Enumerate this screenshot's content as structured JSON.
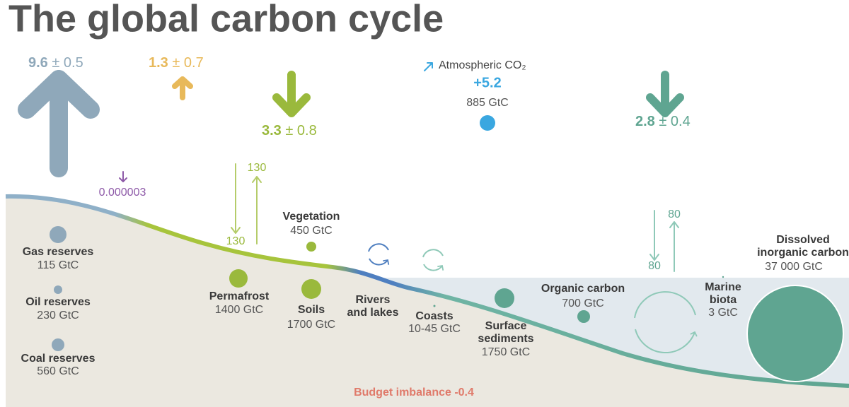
{
  "title": "The global carbon cycle",
  "fluxes": [
    {
      "value": "9.6",
      "uncertainty": "± 0.5"
    },
    {
      "value": "1.3",
      "uncertainty": "± 0.7"
    },
    {
      "value": "3.3",
      "uncertainty": "± 0.8"
    },
    {
      "value": "2.8",
      "uncertainty": "± 0.4"
    }
  ],
  "volcanic": "0.000003",
  "atmosphere": {
    "label": "Atmospheric CO₂",
    "change": "+5.2",
    "stock": "885 GtC"
  },
  "land_exchange": {
    "down": "130",
    "up": "130"
  },
  "ocean_exchange": {
    "down": "80",
    "up": "80"
  },
  "reservoirs": [
    {
      "name": [
        "Gas reserves"
      ],
      "stock": "115 GtC"
    },
    {
      "name": [
        "Oil reserves"
      ],
      "stock": "230 GtC"
    },
    {
      "name": [
        "Coal reserves"
      ],
      "stock": "560 GtC"
    },
    {
      "name": [
        "Vegetation"
      ],
      "stock": "450 GtC"
    },
    {
      "name": [
        "Permafrost"
      ],
      "stock": "1400 GtC"
    },
    {
      "name": [
        "Soils"
      ],
      "stock": "1700 GtC"
    },
    {
      "name": [
        "Rivers",
        "and lakes"
      ]
    },
    {
      "name": [
        "Coasts"
      ],
      "stock": "10-45 GtC"
    },
    {
      "name": [
        "Surface",
        "sediments"
      ],
      "stock": "1750 GtC"
    },
    {
      "name": [
        "Organic carbon"
      ],
      "stock": "700 GtC"
    },
    {
      "name": [
        "Marine",
        "biota"
      ],
      "stock": "3 GtC"
    },
    {
      "name": [
        "Dissolved",
        "inorganic carbon"
      ],
      "stock": "37 000 GtC"
    }
  ],
  "budget_imbalance": "Budget imbalance -0.4"
}
